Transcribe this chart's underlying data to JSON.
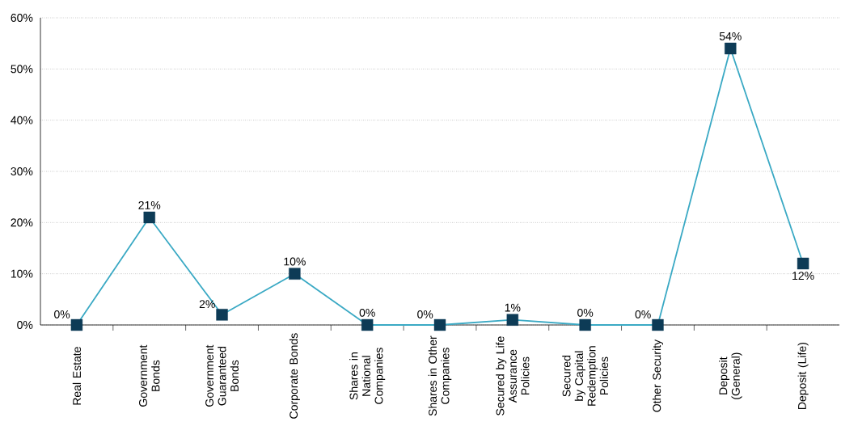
{
  "chart_data": {
    "type": "line",
    "categories": [
      "Real Estate",
      "Government Bonds",
      "Government Guaranteed Bonds",
      "Corporate Bonds",
      "Shares in National Companies",
      "Shares in Other Companies",
      "Secured by Life Assurance Policies",
      "Secured by Capital Redemption Policies",
      "Other Security",
      "Deposit (General)",
      "Deposit (Life)"
    ],
    "series": [
      {
        "color": "#3aa9c4",
        "colors": [
          "#0d3b56",
          "#0d3b56",
          "#0d3b56",
          "#0d3b56",
          "#0d3b56",
          "#0d3b56",
          "#0d3b56",
          "#0d3b56",
          "#0d3b56",
          "#0d3b56",
          "#0d3b56"
        ],
        "values": [
          0,
          21,
          2,
          10,
          0,
          0,
          1,
          0,
          0,
          54,
          12
        ]
      }
    ],
    "value_labels": [
      "0%",
      "21%",
      "2%",
      "10%",
      "0%",
      "0%",
      "1%",
      "0%",
      "0%",
      "54%",
      "12%"
    ],
    "ylim": [
      0,
      60
    ],
    "yticks": [
      {
        "value": 0,
        "label": "0%"
      },
      {
        "value": 10,
        "label": "10%"
      },
      {
        "value": 20,
        "label": "20%"
      },
      {
        "value": 30,
        "label": "30%"
      },
      {
        "value": 40,
        "label": "40%"
      },
      {
        "value": 50,
        "label": "50%"
      },
      {
        "value": 60,
        "label": "60%"
      }
    ],
    "grid": "y",
    "marker": "square",
    "line_style": "solid"
  }
}
